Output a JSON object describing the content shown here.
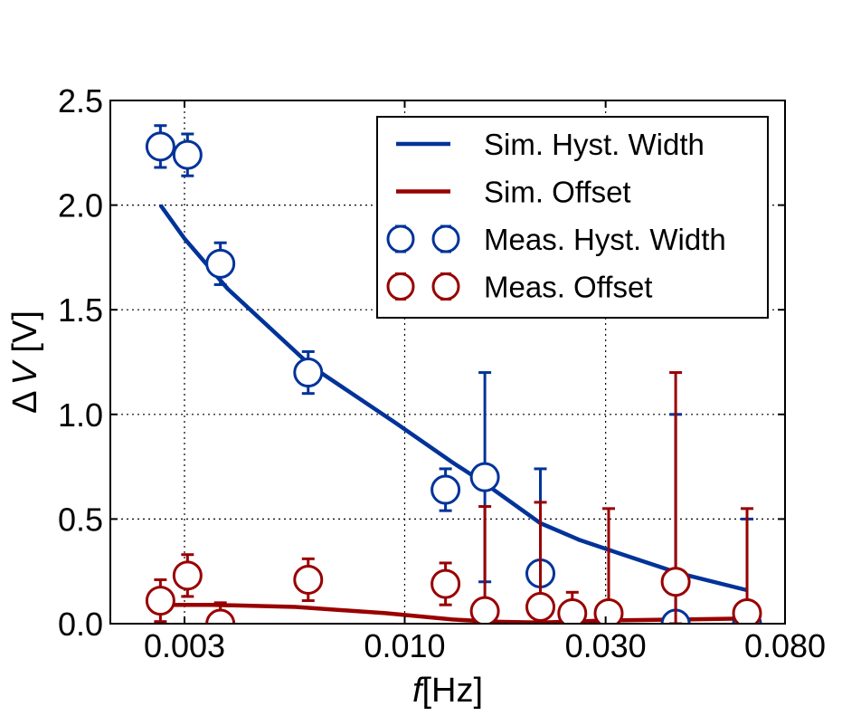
{
  "chart_data": {
    "type": "scatter",
    "xlabel_prefix": "f",
    "xlabel_unit": "[Hz]",
    "ylabel_prefix": "Δ",
    "ylabel_var": "V",
    "ylabel_unit": " [V]",
    "x_scale": "log",
    "xlim": [
      0.002,
      0.08
    ],
    "ylim": [
      0,
      2.5
    ],
    "x_ticks": [
      {
        "value": 0.003,
        "label": "0.003"
      },
      {
        "value": 0.01,
        "label": "0.010"
      },
      {
        "value": 0.03,
        "label": "0.030"
      },
      {
        "value": 0.08,
        "label": "0.080"
      }
    ],
    "y_ticks": [
      {
        "value": 0.0,
        "label": "0.0"
      },
      {
        "value": 0.5,
        "label": "0.5"
      },
      {
        "value": 1.0,
        "label": "1.0"
      },
      {
        "value": 1.5,
        "label": "1.5"
      },
      {
        "value": 2.0,
        "label": "2.0"
      },
      {
        "value": 2.5,
        "label": "2.5"
      }
    ],
    "grid": true,
    "legend_position": "top-right",
    "series": [
      {
        "name": "Sim. Hyst. Width",
        "kind": "line",
        "color": "#003399",
        "points": [
          [
            0.00263,
            2.0
          ],
          [
            0.003,
            1.84
          ],
          [
            0.0038,
            1.6
          ],
          [
            0.006,
            1.23
          ],
          [
            0.0095,
            0.96
          ],
          [
            0.013,
            0.77
          ],
          [
            0.0155,
            0.67
          ],
          [
            0.021,
            0.48
          ],
          [
            0.026,
            0.4
          ],
          [
            0.033,
            0.33
          ],
          [
            0.045,
            0.24
          ],
          [
            0.065,
            0.16
          ]
        ]
      },
      {
        "name": "Sim. Offset",
        "kind": "line",
        "color": "#990000",
        "points": [
          [
            0.00263,
            0.09
          ],
          [
            0.0035,
            0.09
          ],
          [
            0.0055,
            0.08
          ],
          [
            0.009,
            0.05
          ],
          [
            0.013,
            0.02
          ],
          [
            0.016,
            0.01
          ],
          [
            0.021,
            0.005
          ],
          [
            0.03,
            0.015
          ],
          [
            0.045,
            0.02
          ],
          [
            0.065,
            0.025
          ]
        ]
      },
      {
        "name": "Meas. Hyst. Width",
        "kind": "errorbar",
        "color": "#003399",
        "points": [
          {
            "x": 0.00263,
            "y": 2.28,
            "lo": 2.18,
            "hi": 2.38
          },
          {
            "x": 0.00305,
            "y": 2.24,
            "lo": 2.14,
            "hi": 2.34
          },
          {
            "x": 0.00365,
            "y": 1.72,
            "lo": 1.62,
            "hi": 1.82
          },
          {
            "x": 0.0059,
            "y": 1.2,
            "lo": 1.1,
            "hi": 1.3
          },
          {
            "x": 0.0125,
            "y": 0.64,
            "lo": 0.54,
            "hi": 0.74
          },
          {
            "x": 0.0155,
            "y": 0.7,
            "lo": 0.2,
            "hi": 1.2
          },
          {
            "x": 0.021,
            "y": 0.24,
            "lo": 0.0,
            "hi": 0.74
          },
          {
            "x": 0.044,
            "y": 0.0,
            "lo": 0.0,
            "hi": 1.0
          },
          {
            "x": 0.065,
            "y": 0.0,
            "lo": 0.0,
            "hi": 0.5
          }
        ]
      },
      {
        "name": "Meas. Offset",
        "kind": "errorbar",
        "color": "#990000",
        "points": [
          {
            "x": 0.00263,
            "y": 0.11,
            "lo": 0.01,
            "hi": 0.21
          },
          {
            "x": 0.00305,
            "y": 0.23,
            "lo": 0.13,
            "hi": 0.33
          },
          {
            "x": 0.00365,
            "y": 0.0,
            "lo": 0.0,
            "hi": 0.1
          },
          {
            "x": 0.0059,
            "y": 0.21,
            "lo": 0.11,
            "hi": 0.31
          },
          {
            "x": 0.0125,
            "y": 0.19,
            "lo": 0.09,
            "hi": 0.29
          },
          {
            "x": 0.0155,
            "y": 0.06,
            "lo": 0.0,
            "hi": 0.56
          },
          {
            "x": 0.021,
            "y": 0.08,
            "lo": 0.0,
            "hi": 0.58
          },
          {
            "x": 0.025,
            "y": 0.05,
            "lo": 0.0,
            "hi": 0.15
          },
          {
            "x": 0.0305,
            "y": 0.05,
            "lo": 0.0,
            "hi": 0.55
          },
          {
            "x": 0.044,
            "y": 0.2,
            "lo": 0.0,
            "hi": 1.2
          },
          {
            "x": 0.065,
            "y": 0.05,
            "lo": 0.0,
            "hi": 0.55
          }
        ]
      }
    ]
  }
}
